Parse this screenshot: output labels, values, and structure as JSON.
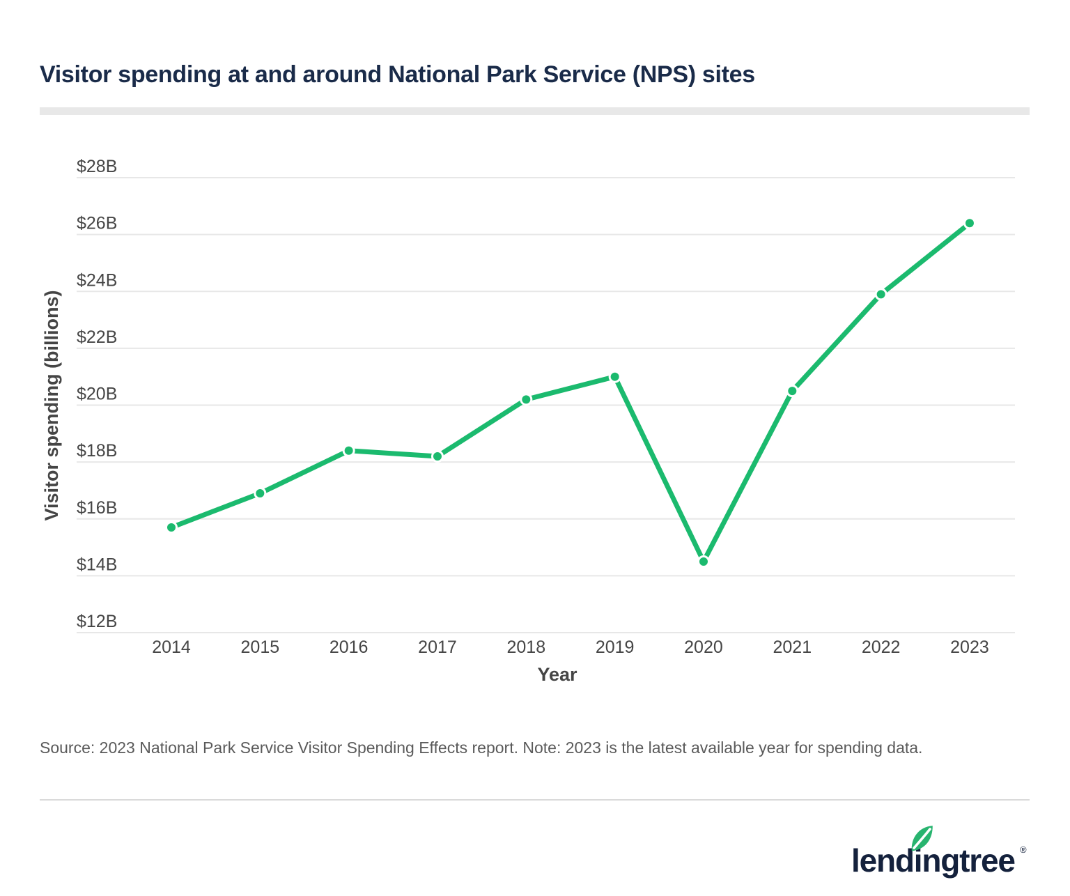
{
  "page": {
    "title": "Visitor spending at and around National Park Service (NPS) sites",
    "source_note": "Source: 2023 National Park Service Visitor Spending Effects report. Note: 2023 is the latest available year for spending data.",
    "brand": {
      "logo_text": "lendingtree",
      "registered_mark": "®"
    }
  },
  "colors": {
    "title_navy": "#1a2b49",
    "logo_navy": "#14213c",
    "line_green": "#1bba6e",
    "leaf_green": "#28b46f",
    "grid_gray": "#e7e7e7",
    "tick_gray": "#454545",
    "axis_title_gray": "#454545",
    "underline_bar_gray": "#e8e8e8",
    "hairline_gray": "#dadada",
    "source_gray": "#5a5a5a"
  },
  "chart_data": {
    "type": "line",
    "title": "Visitor spending at and around National Park Service (NPS) sites",
    "categories": [
      "2014",
      "2015",
      "2016",
      "2017",
      "2018",
      "2019",
      "2020",
      "2021",
      "2022",
      "2023"
    ],
    "series": [
      {
        "name": "Visitor spending",
        "color": "#1bba6e",
        "values": [
          15.7,
          16.9,
          18.4,
          18.2,
          20.2,
          21.0,
          14.5,
          20.5,
          23.9,
          26.4
        ]
      }
    ],
    "xlabel": "Year",
    "ylabel": "Visitor spending (billions)",
    "ylim": [
      12,
      28
    ],
    "y_ticks": [
      {
        "value": 12,
        "label": "$12B"
      },
      {
        "value": 14,
        "label": "$14B"
      },
      {
        "value": 16,
        "label": "$16B"
      },
      {
        "value": 18,
        "label": "$18B"
      },
      {
        "value": 20,
        "label": "$20B"
      },
      {
        "value": 22,
        "label": "$22B"
      },
      {
        "value": 24,
        "label": "$24B"
      },
      {
        "value": 26,
        "label": "$26B"
      },
      {
        "value": 28,
        "label": "$28B"
      },
      {
        "value": 30,
        "label": ""
      }
    ],
    "grid": true,
    "legend": "none",
    "marker": "circle"
  }
}
